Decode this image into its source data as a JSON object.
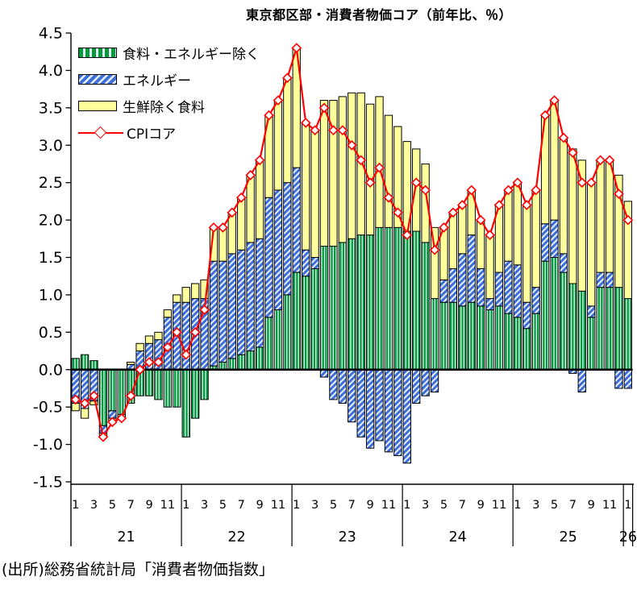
{
  "title": "東京都区部・消費者物価コア（前年比、％）",
  "source": "(出所)総務省統計局「消費者物価指数」",
  "chart_data": {
    "type": "bar",
    "subtype": "stacked-bars-with-line-overlay",
    "title": "東京都区部・消費者物価コア（前年比、％）",
    "x_start": "2021-01",
    "x_end": "2026-01",
    "n_months": 61,
    "x_years": [
      "21",
      "22",
      "23",
      "24",
      "25",
      "26"
    ],
    "month_tick_labels": [
      "1",
      "3",
      "5",
      "7",
      "9",
      "11"
    ],
    "ylim": [
      -1.5,
      4.5
    ],
    "ytick_step": 0.5,
    "yticks": [
      4.5,
      4.0,
      3.5,
      3.0,
      2.5,
      2.0,
      1.5,
      1.0,
      0.5,
      0.0,
      -0.5,
      -1.0,
      -1.5
    ],
    "grid": "off",
    "legend_position": "top-left-inside",
    "colors": {
      "core_core_bar": "#00993F",
      "core_core_stripe": "#E4F7EC",
      "energy_bar": "#3E6FD8",
      "energy_stripe": "#EAF1FC",
      "food_bar": "#FFFF9C",
      "bar_border": "#000000",
      "cpi_line": "#FF0000",
      "marker_fill": "#FFFFFF",
      "axis": "#000000"
    },
    "series": [
      {
        "name": "食料・エネルギー除く",
        "type": "bar",
        "style": "green-vertical-stripes",
        "values": [
          0.15,
          0.2,
          0.12,
          -0.75,
          -0.55,
          -0.6,
          -0.45,
          -0.35,
          -0.35,
          -0.4,
          -0.5,
          -0.5,
          -0.9,
          -0.65,
          -0.4,
          0.05,
          0.1,
          0.15,
          0.2,
          0.25,
          0.3,
          0.7,
          0.8,
          1.0,
          1.3,
          1.25,
          1.35,
          1.65,
          1.65,
          1.7,
          1.75,
          1.8,
          1.8,
          1.9,
          1.9,
          1.9,
          1.85,
          1.85,
          1.7,
          0.95,
          0.9,
          0.9,
          0.85,
          0.9,
          0.85,
          0.8,
          0.85,
          0.75,
          0.7,
          0.55,
          0.75,
          1.45,
          1.5,
          1.3,
          1.15,
          1.05,
          0.7,
          1.1,
          1.1,
          1.1,
          0.95
        ]
      },
      {
        "name": "エネルギー",
        "type": "bar",
        "style": "blue-diagonal-stripes",
        "values": [
          -0.45,
          -0.52,
          -0.42,
          -0.1,
          -0.1,
          -0.03,
          0.07,
          0.25,
          0.35,
          0.4,
          0.7,
          0.9,
          0.9,
          0.95,
          0.95,
          1.4,
          1.35,
          1.4,
          1.4,
          1.45,
          1.45,
          1.6,
          1.6,
          1.5,
          1.4,
          0.35,
          0.15,
          -0.1,
          -0.4,
          -0.45,
          -0.7,
          -0.9,
          -1.05,
          -0.95,
          -1.1,
          -1.15,
          -1.25,
          -0.45,
          -0.35,
          -0.3,
          0.3,
          0.45,
          0.7,
          0.9,
          0.5,
          0.15,
          0.45,
          0.7,
          0.7,
          0.35,
          0.35,
          0.5,
          0.5,
          0.25,
          -0.05,
          -0.3,
          0.15,
          0.2,
          0.2,
          -0.25,
          -0.25
        ]
      },
      {
        "name": "生鮮除く食料",
        "type": "bar",
        "style": "pale-yellow-solid",
        "values": [
          -0.1,
          -0.13,
          -0.05,
          -0.05,
          -0.05,
          -0.02,
          0.03,
          0.1,
          0.1,
          0.1,
          0.1,
          0.1,
          0.2,
          0.2,
          0.25,
          0.45,
          0.45,
          0.55,
          0.7,
          0.9,
          1.05,
          1.1,
          1.2,
          1.4,
          1.6,
          1.7,
          1.7,
          1.95,
          1.95,
          1.95,
          1.95,
          1.9,
          1.75,
          1.75,
          1.5,
          1.35,
          1.2,
          1.1,
          1.05,
          0.95,
          0.7,
          0.75,
          0.65,
          0.6,
          0.65,
          0.85,
          0.9,
          0.95,
          1.1,
          1.3,
          1.3,
          1.45,
          1.6,
          1.55,
          1.8,
          1.75,
          1.65,
          1.5,
          1.5,
          1.5,
          1.3
        ]
      },
      {
        "name": "CPIコア",
        "type": "line",
        "style": "red-line-open-diamond-markers",
        "values": [
          -0.4,
          -0.45,
          -0.35,
          -0.9,
          -0.7,
          -0.65,
          -0.35,
          0.0,
          0.1,
          0.1,
          0.3,
          0.5,
          0.2,
          0.5,
          0.8,
          1.9,
          1.9,
          2.1,
          2.3,
          2.6,
          2.8,
          3.4,
          3.6,
          3.9,
          4.3,
          3.3,
          3.2,
          3.5,
          3.2,
          3.2,
          3.0,
          2.8,
          2.5,
          2.7,
          2.3,
          2.1,
          1.8,
          2.5,
          2.4,
          1.6,
          1.9,
          2.1,
          2.2,
          2.4,
          2.0,
          1.8,
          2.2,
          2.4,
          2.5,
          2.2,
          2.4,
          3.4,
          3.6,
          3.1,
          2.9,
          2.5,
          2.5,
          2.8,
          2.8,
          2.35,
          2.0
        ]
      }
    ]
  }
}
